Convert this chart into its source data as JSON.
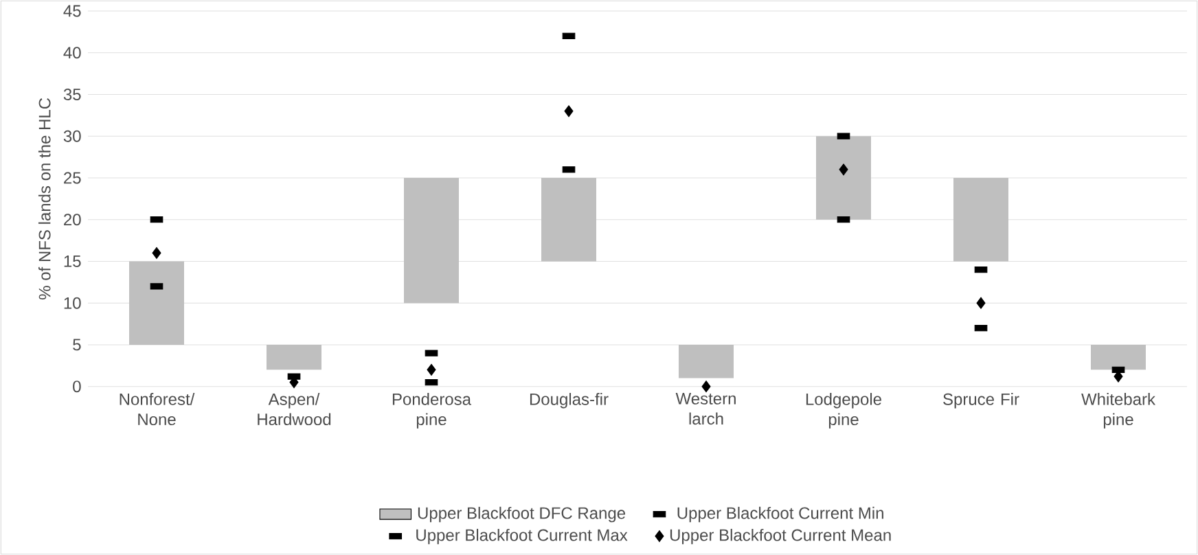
{
  "chart_data": {
    "type": "bar",
    "ylabel": "% of NFS lands on the HLC",
    "categories": [
      "Nonforest/ None",
      "Aspen/ Hardwood",
      "Ponderosa pine",
      "Douglas-fir",
      "Western larch",
      "Lodgepole pine",
      "Spruce Fir",
      "Whitebark pine"
    ],
    "series": [
      {
        "name": "Upper Blackfoot DFC Range",
        "type": "bar",
        "color": "#bfbfbf",
        "base": [
          5,
          2,
          10,
          15,
          1,
          20,
          15,
          2
        ],
        "values": [
          10,
          3,
          15,
          10,
          4,
          10,
          10,
          3
        ]
      },
      {
        "name": "Upper Blackfoot Current Min",
        "type": "scatter",
        "marker": "square",
        "color": "#000000",
        "values": [
          12,
          null,
          0.5,
          26,
          null,
          20,
          7,
          null
        ]
      },
      {
        "name": "Upper Blackfoot Current Max",
        "type": "scatter",
        "marker": "square",
        "color": "#000000",
        "values": [
          20,
          1.2,
          4,
          42,
          null,
          30,
          14,
          2
        ]
      },
      {
        "name": "Upper Blackfoot Current Mean",
        "type": "scatter",
        "marker": "diamond",
        "color": "#000000",
        "values": [
          16,
          0.5,
          2,
          33,
          0,
          26,
          10,
          1.2
        ]
      }
    ],
    "ylim": [
      0,
      45
    ],
    "yticks": [
      0,
      5,
      10,
      15,
      20,
      25,
      30,
      35,
      40,
      45
    ],
    "grid": "y",
    "legend": "bottom"
  }
}
